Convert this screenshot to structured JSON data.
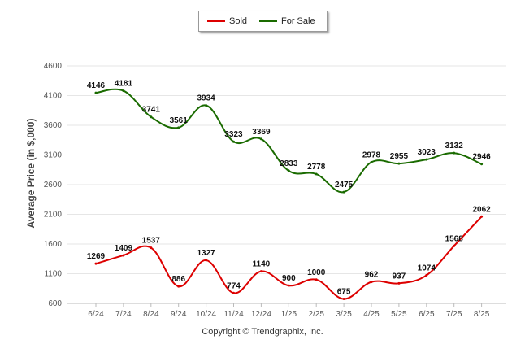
{
  "chart_data": {
    "type": "line",
    "categories": [
      "6/24",
      "7/24",
      "8/24",
      "9/24",
      "10/24",
      "11/24",
      "12/24",
      "1/25",
      "2/25",
      "3/25",
      "4/25",
      "5/25",
      "6/25",
      "7/25",
      "8/25"
    ],
    "series": [
      {
        "name": "Sold",
        "color": "#dd0000",
        "values": [
          1269,
          1409,
          1537,
          886,
          1327,
          774,
          1140,
          900,
          1000,
          675,
          962,
          937,
          1074,
          1568,
          2062
        ]
      },
      {
        "name": "For Sale",
        "color": "#1a6b00",
        "values": [
          4146,
          4181,
          3741,
          3561,
          3934,
          3323,
          3369,
          2833,
          2778,
          2475,
          2978,
          2955,
          3023,
          3132,
          2946
        ]
      }
    ],
    "ylabel": "Average Price (in $,000)",
    "ylim": [
      600,
      4600
    ],
    "yticks": [
      "600",
      "1100",
      "1600",
      "2100",
      "2600",
      "3100",
      "3600",
      "4100",
      "4600"
    ],
    "grid": true,
    "legend_placement": "top-center"
  },
  "legend": {
    "sold_label": "Sold",
    "forsale_label": "For Sale"
  },
  "footer": {
    "copyright": "Copyright © Trendgraphix, Inc."
  }
}
